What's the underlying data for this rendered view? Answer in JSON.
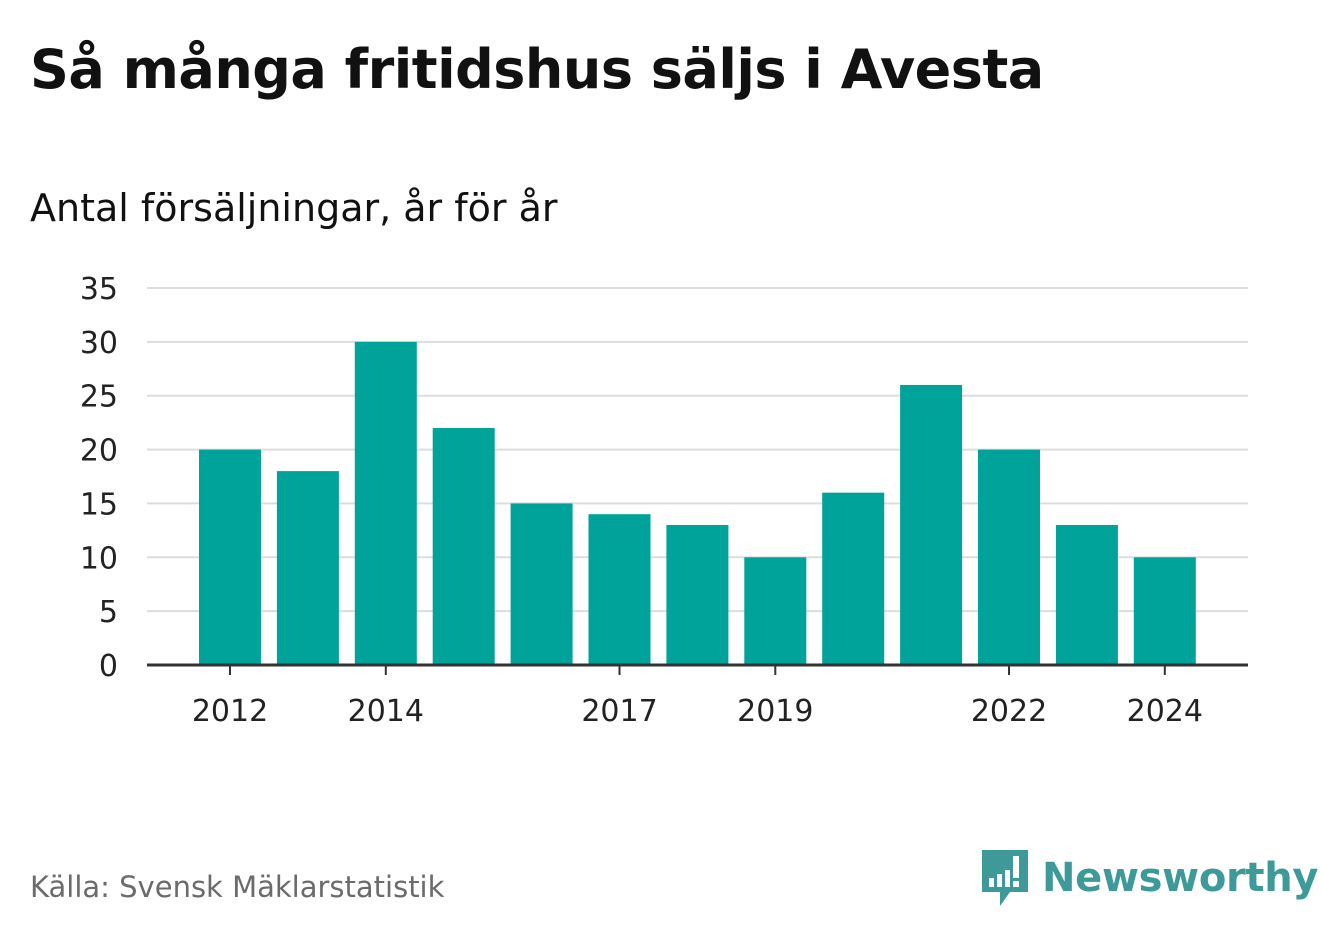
{
  "header": {
    "title": "Så många fritidshus säljs i Avesta",
    "subtitle": "Antal försäljningar, år för år"
  },
  "footer": {
    "source": "Källa: Svensk Mäklarstatistik",
    "brand": "Newsworthy"
  },
  "colors": {
    "bar": "#00a39a",
    "grid": "#dddddd",
    "axis": "#333333",
    "brand": "#3d9a98"
  },
  "chart_data": {
    "type": "bar",
    "title": "Så många fritidshus säljs i Avesta",
    "subtitle": "Antal försäljningar, år för år",
    "xlabel": "",
    "ylabel": "",
    "categories": [
      "2012",
      "2013",
      "2014",
      "2015",
      "2016",
      "2017",
      "2018",
      "2019",
      "2020",
      "2021",
      "2022",
      "2023",
      "2024"
    ],
    "values": [
      20,
      18,
      30,
      22,
      15,
      14,
      13,
      10,
      16,
      26,
      20,
      13,
      10
    ],
    "x_tick_labels": [
      "2012",
      "2014",
      "2017",
      "2019",
      "2022",
      "2024"
    ],
    "y_ticks": [
      0,
      5,
      10,
      15,
      20,
      25,
      30,
      35
    ],
    "ylim": [
      0,
      35
    ],
    "grid": true,
    "legend": "none"
  }
}
